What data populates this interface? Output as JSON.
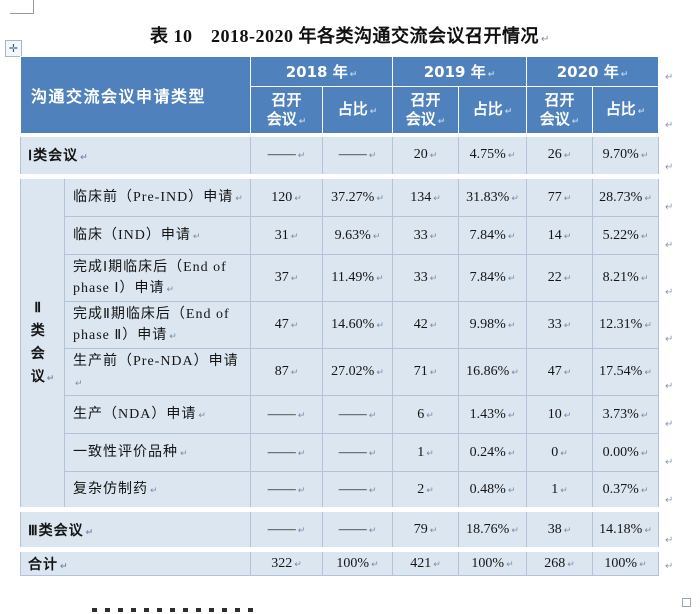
{
  "document": {
    "title": "表 10　2018-2020 年各类沟通交流会议召开情况",
    "pilcrow": "↵",
    "move_handle_glyph": "✛"
  },
  "table": {
    "header": {
      "type_column": "沟通交流会议申请类型",
      "years": [
        "2018 年",
        "2019 年",
        "2020 年"
      ],
      "sub_columns": [
        "召开\n会议",
        "占比"
      ]
    },
    "rows": [
      {
        "label": "Ⅰ类会议",
        "span": 2,
        "section_gap": false,
        "values": [
          "——",
          "——",
          "20",
          "4.75%",
          "26",
          "9.70%"
        ]
      },
      {
        "label": "临床前（Pre-IND）申请",
        "group": "Ⅱ\n类\n会\n议",
        "group_rowspan": 8,
        "section_gap": true,
        "values": [
          "120",
          "37.27%",
          "134",
          "31.83%",
          "77",
          "28.73%"
        ]
      },
      {
        "label": "临床（IND）申请",
        "values": [
          "31",
          "9.63%",
          "33",
          "7.84%",
          "14",
          "5.22%"
        ]
      },
      {
        "label": "完成Ⅰ期临床后（End of phase Ⅰ）申请",
        "values": [
          "37",
          "11.49%",
          "33",
          "7.84%",
          "22",
          "8.21%"
        ]
      },
      {
        "label": "完成Ⅱ期临床后（End of phase Ⅱ）申请",
        "values": [
          "47",
          "14.60%",
          "42",
          "9.98%",
          "33",
          "12.31%"
        ]
      },
      {
        "label": "生产前（Pre-NDA）申请",
        "values": [
          "87",
          "27.02%",
          "71",
          "16.86%",
          "47",
          "17.54%"
        ]
      },
      {
        "label": "生产（NDA）申请",
        "values": [
          "——",
          "——",
          "6",
          "1.43%",
          "10",
          "3.73%"
        ]
      },
      {
        "label": "一致性评价品种",
        "values": [
          "——",
          "——",
          "1",
          "0.24%",
          "0",
          "0.00%"
        ]
      },
      {
        "label": "复杂仿制药",
        "values": [
          "——",
          "——",
          "2",
          "0.48%",
          "1",
          "0.37%"
        ]
      },
      {
        "label": "Ⅲ类会议",
        "span": 2,
        "section_gap": true,
        "values": [
          "——",
          "——",
          "79",
          "18.76%",
          "38",
          "14.18%"
        ]
      },
      {
        "label": "合计",
        "span": 2,
        "section_gap": true,
        "values": [
          "322",
          "100%",
          "421",
          "100%",
          "268",
          "100%"
        ]
      }
    ]
  },
  "colors": {
    "header_bg": "#4f81bd",
    "cell_bg": "#dce6f1",
    "grid_line": "#b3c2d8",
    "header_text": "#ffffff"
  }
}
